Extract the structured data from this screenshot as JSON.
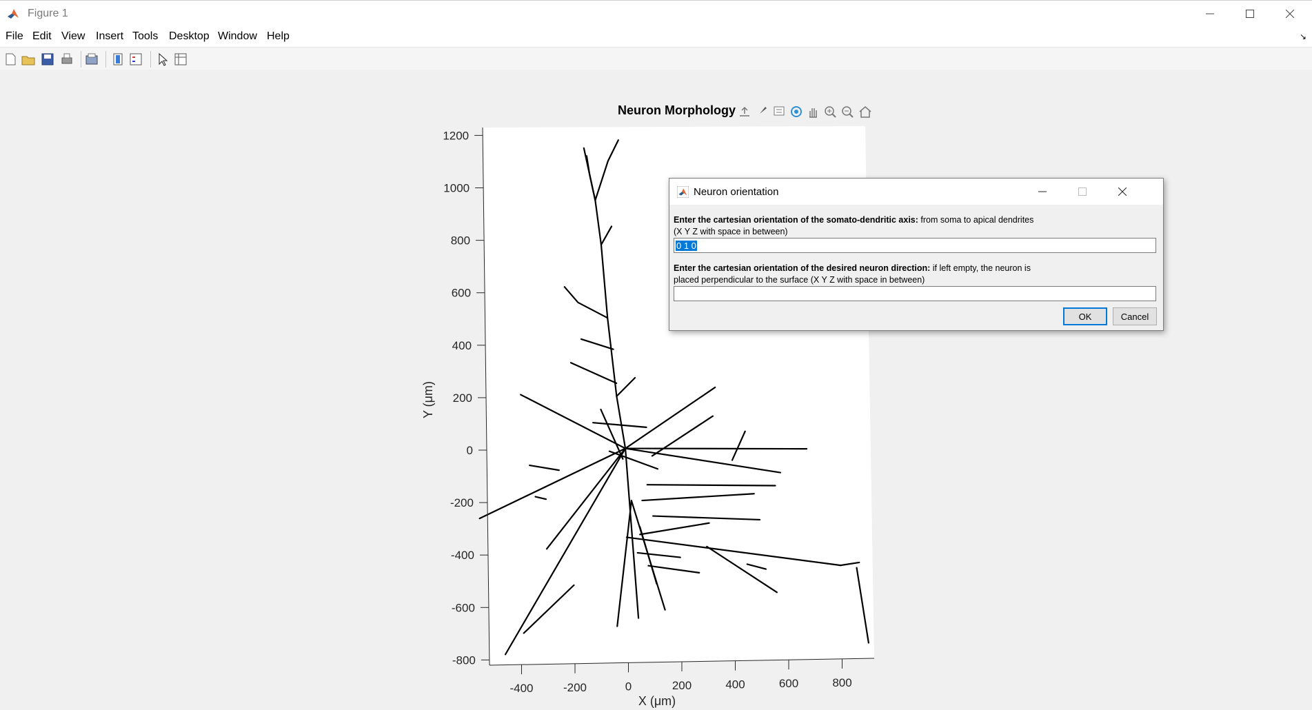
{
  "window": {
    "title": "Figure 1"
  },
  "menu": {
    "items": [
      "File",
      "Edit",
      "View",
      "Insert",
      "Tools",
      "Desktop",
      "Window",
      "Help"
    ]
  },
  "toolbar": {
    "icons": [
      "new-figure-icon",
      "open-file-icon",
      "save-icon",
      "print-icon",
      "print-preview-icon",
      "colorbar-icon",
      "legend-icon",
      "edit-plot-icon",
      "property-inspector-icon"
    ]
  },
  "axes_toolbar": {
    "icons": [
      "export-icon",
      "brush-icon",
      "data-tips-icon",
      "rotate-3d-icon",
      "pan-icon",
      "zoom-in-icon",
      "zoom-out-icon",
      "home-icon"
    ]
  },
  "chart_data": {
    "type": "line",
    "title": "Neuron Morphology",
    "xlabel": "X (μm)",
    "ylabel": "Y (μm)",
    "xticks": [
      -400,
      -200,
      0,
      200,
      400,
      600,
      800
    ],
    "yticks": [
      1200,
      1000,
      800,
      600,
      400,
      200,
      0,
      -200,
      -400,
      -600,
      -800
    ],
    "xlim": [
      -520,
      920
    ],
    "ylim": [
      -820,
      1230
    ],
    "colors": {
      "trace": "#000000",
      "axes_bg": "#ffffff"
    },
    "series": [
      {
        "points": [
          [
            0,
            0
          ],
          [
            -30,
            200
          ],
          [
            -60,
            500
          ],
          [
            -80,
            780
          ],
          [
            -100,
            950
          ],
          [
            -140,
            1150
          ]
        ]
      },
      {
        "points": [
          [
            -100,
            950
          ],
          [
            -50,
            1100
          ],
          [
            -10,
            1180
          ]
        ]
      },
      {
        "points": [
          [
            -100,
            950
          ],
          [
            -120,
            1050
          ],
          [
            -130,
            1120
          ]
        ]
      },
      {
        "points": [
          [
            -80,
            780
          ],
          [
            -40,
            850
          ]
        ]
      },
      {
        "points": [
          [
            -60,
            500
          ],
          [
            -170,
            560
          ],
          [
            -220,
            620
          ]
        ]
      },
      {
        "points": [
          [
            -40,
            380
          ],
          [
            -160,
            420
          ]
        ]
      },
      {
        "points": [
          [
            -30,
            250
          ],
          [
            -200,
            330
          ]
        ]
      },
      {
        "points": [
          [
            -30,
            200
          ],
          [
            40,
            270
          ]
        ]
      },
      {
        "points": [
          [
            0,
            0
          ],
          [
            -390,
            210
          ]
        ]
      },
      {
        "points": [
          [
            -250,
            -80
          ],
          [
            -360,
            -60
          ]
        ]
      },
      {
        "points": [
          [
            0,
            0
          ],
          [
            -550,
            -260
          ]
        ]
      },
      {
        "points": [
          [
            -300,
            -190
          ],
          [
            -340,
            -180
          ]
        ]
      },
      {
        "points": [
          [
            0,
            0
          ],
          [
            -300,
            -380
          ]
        ]
      },
      {
        "points": [
          [
            0,
            0
          ],
          [
            -460,
            -780
          ]
        ]
      },
      {
        "points": [
          [
            -200,
            -520
          ],
          [
            -390,
            -700
          ]
        ]
      },
      {
        "points": [
          [
            0,
            0
          ],
          [
            40,
            -650
          ]
        ]
      },
      {
        "points": [
          [
            20,
            -200
          ],
          [
            -40,
            -680
          ]
        ]
      },
      {
        "points": [
          [
            20,
            -200
          ],
          [
            140,
            -620
          ]
        ]
      },
      {
        "points": [
          [
            50,
            -300
          ],
          [
            110,
            -520
          ]
        ]
      },
      {
        "points": [
          [
            0,
            0
          ],
          [
            340,
            230
          ]
        ]
      },
      {
        "points": [
          [
            100,
            -30
          ],
          [
            330,
            120
          ]
        ]
      },
      {
        "points": [
          [
            0,
            0
          ],
          [
            680,
            -10
          ]
        ]
      },
      {
        "points": [
          [
            450,
            60
          ],
          [
            400,
            -50
          ]
        ]
      },
      {
        "points": [
          [
            0,
            0
          ],
          [
            580,
            -100
          ]
        ]
      },
      {
        "points": [
          [
            80,
            -140
          ],
          [
            560,
            -150
          ]
        ]
      },
      {
        "points": [
          [
            60,
            -200
          ],
          [
            480,
            -180
          ]
        ]
      },
      {
        "points": [
          [
            100,
            -260
          ],
          [
            500,
            -280
          ]
        ]
      },
      {
        "points": [
          [
            50,
            -330
          ],
          [
            310,
            -290
          ]
        ]
      },
      {
        "points": [
          [
            0,
            -340
          ],
          [
            800,
            -460
          ]
        ]
      },
      {
        "points": [
          [
            300,
            -380
          ],
          [
            560,
            -560
          ]
        ]
      },
      {
        "points": [
          [
            520,
            -470
          ],
          [
            450,
            -450
          ]
        ]
      },
      {
        "points": [
          [
            800,
            -460
          ],
          [
            870,
            -450
          ]
        ]
      },
      {
        "points": [
          [
            860,
            -470
          ],
          [
            900,
            -760
          ]
        ]
      },
      {
        "points": [
          [
            -60,
            -10
          ],
          [
            120,
            -80
          ]
        ]
      },
      {
        "points": [
          [
            -120,
            100
          ],
          [
            80,
            80
          ]
        ]
      },
      {
        "points": [
          [
            -90,
            150
          ],
          [
            -10,
            -40
          ]
        ]
      },
      {
        "points": [
          [
            40,
            -400
          ],
          [
            200,
            -420
          ]
        ]
      },
      {
        "points": [
          [
            80,
            -450
          ],
          [
            270,
            -480
          ]
        ]
      }
    ]
  },
  "dialog": {
    "title": "Neuron orientation",
    "prompt1_bold": "Enter the cartesian orientation of the somato-dendritic axis:",
    "prompt1_rest": " from soma to apical dendrites",
    "prompt1_line2": "(X Y Z with space in between)",
    "field1_value": "0 1 0",
    "prompt2_bold": "Enter the cartesian orientation of the desired neuron direction:",
    "prompt2_rest": " if left empty, the neuron is",
    "prompt2_line2": "placed perpendicular to the surface (X Y Z with space in between)",
    "field2_value": "",
    "ok_label": "OK",
    "cancel_label": "Cancel"
  }
}
